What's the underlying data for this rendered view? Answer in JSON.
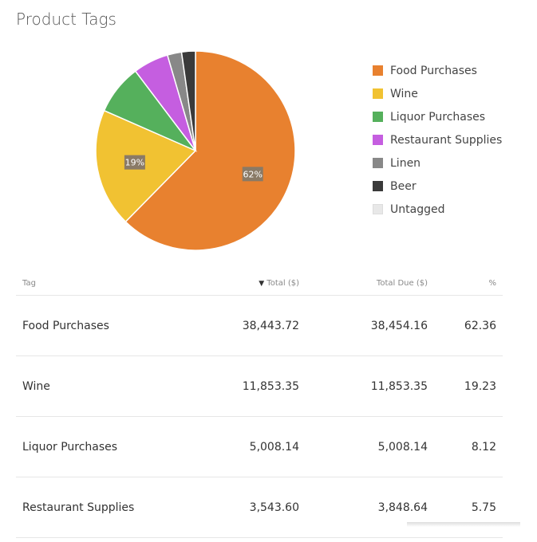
{
  "title": "Product Tags",
  "chart_data": {
    "type": "pie",
    "categories": [
      "Food Purchases",
      "Wine",
      "Liquor Purchases",
      "Restaurant Supplies",
      "Linen",
      "Beer",
      "Untagged"
    ],
    "values": [
      62.36,
      19.23,
      8.12,
      5.75,
      2.3,
      2.24,
      0
    ],
    "colors": [
      "#e8812f",
      "#f1c232",
      "#55b05c",
      "#c55ee0",
      "#888888",
      "#3a3a3a",
      "#e8e8e8"
    ],
    "data_labels": [
      "62%",
      "19%",
      "",
      "",
      "",
      "",
      ""
    ],
    "legend_position": "right"
  },
  "table": {
    "headers": [
      "Tag",
      "Total ($)",
      "Total Due ($)",
      "%"
    ],
    "sort_indicator": "▼",
    "rows": [
      [
        "Food Purchases",
        "38,443.72",
        "38,454.16",
        "62.36"
      ],
      [
        "Wine",
        "11,853.35",
        "11,853.35",
        "19.23"
      ],
      [
        "Liquor Purchases",
        "5,008.14",
        "5,008.14",
        "8.12"
      ],
      [
        "Restaurant Supplies",
        "3,543.60",
        "3,848.64",
        "5.75"
      ]
    ]
  }
}
